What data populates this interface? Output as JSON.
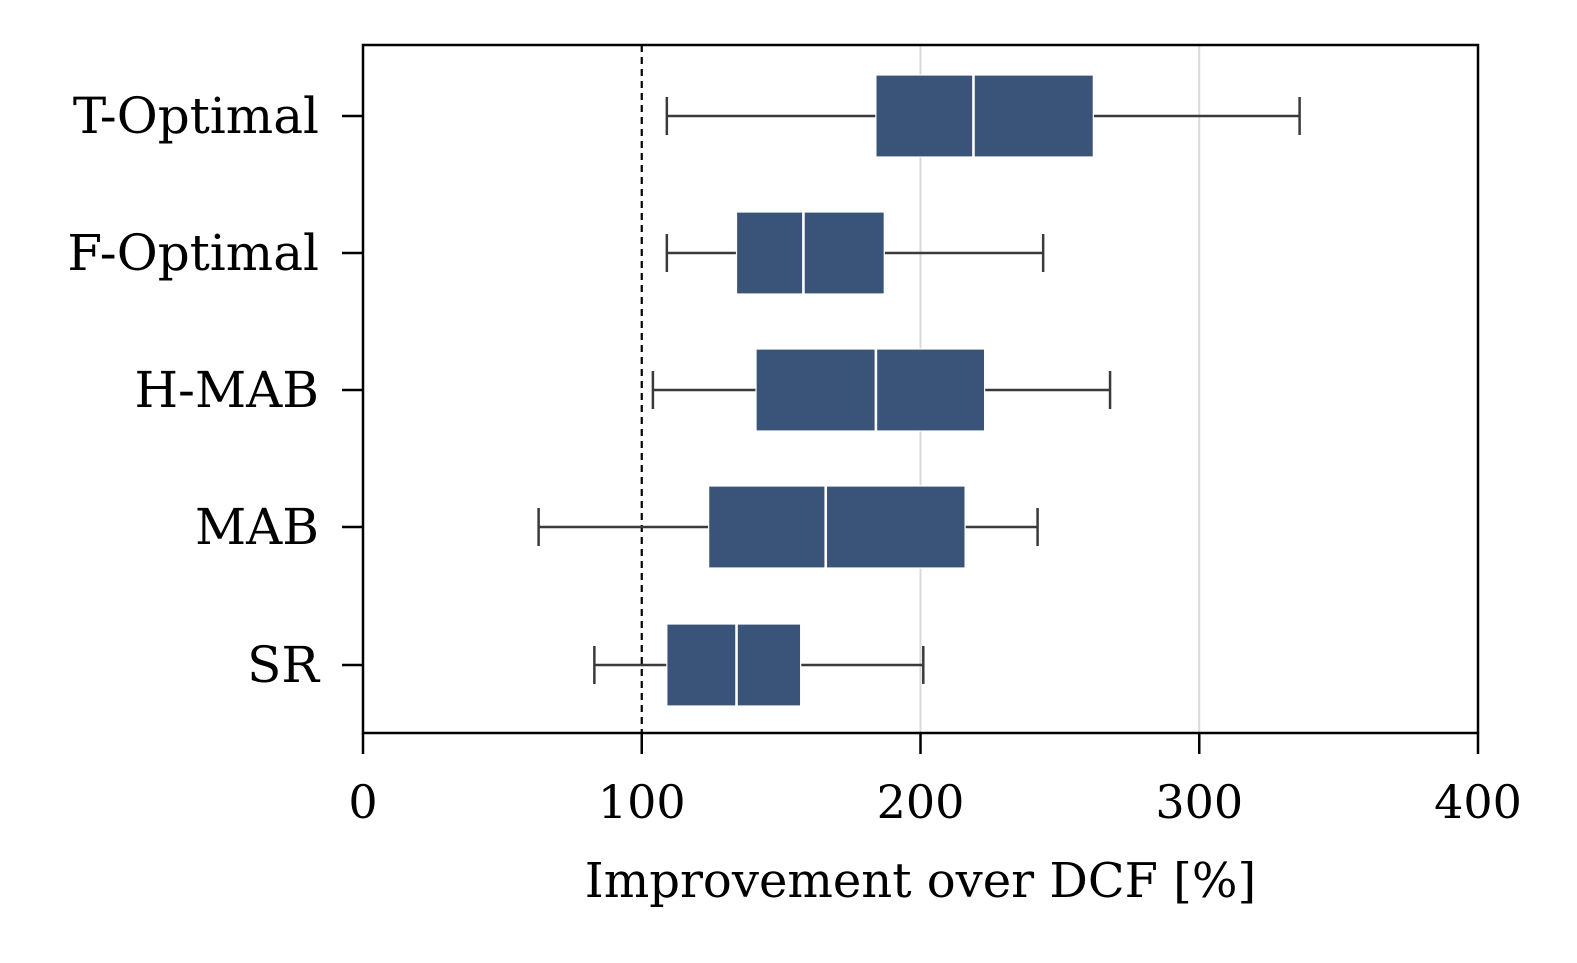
{
  "chart_data": {
    "type": "boxplot",
    "orientation": "horizontal",
    "xlabel": "Improvement over DCF [%]",
    "ylabel": "",
    "xlim": [
      0,
      400
    ],
    "x_ticks": [
      0,
      100,
      200,
      300,
      400
    ],
    "x_tick_labels": [
      "0",
      "100",
      "200",
      "300",
      "400"
    ],
    "vertical_grid_at": [
      200,
      300
    ],
    "reference_line": {
      "x": 100,
      "style": "dashed",
      "color": "#000000"
    },
    "box_color": "#3a5378",
    "median_color": "#ffffff",
    "whisker_color": "#3a3a3a",
    "categories": [
      "T-Optimal",
      "F-Optimal",
      "H-MAB",
      "MAB",
      "SR"
    ],
    "series": [
      {
        "name": "T-Optimal",
        "whisker_low": 109,
        "q1": 184,
        "median": 219,
        "q3": 262,
        "whisker_high": 336
      },
      {
        "name": "F-Optimal",
        "whisker_low": 109,
        "q1": 134,
        "median": 158,
        "q3": 187,
        "whisker_high": 244
      },
      {
        "name": "H-MAB",
        "whisker_low": 104,
        "q1": 141,
        "median": 184,
        "q3": 223,
        "whisker_high": 268
      },
      {
        "name": "MAB",
        "whisker_low": 63,
        "q1": 124,
        "median": 166,
        "q3": 216,
        "whisker_high": 242
      },
      {
        "name": "SR",
        "whisker_low": 83,
        "q1": 109,
        "median": 134,
        "q3": 157,
        "whisker_high": 201
      }
    ]
  }
}
